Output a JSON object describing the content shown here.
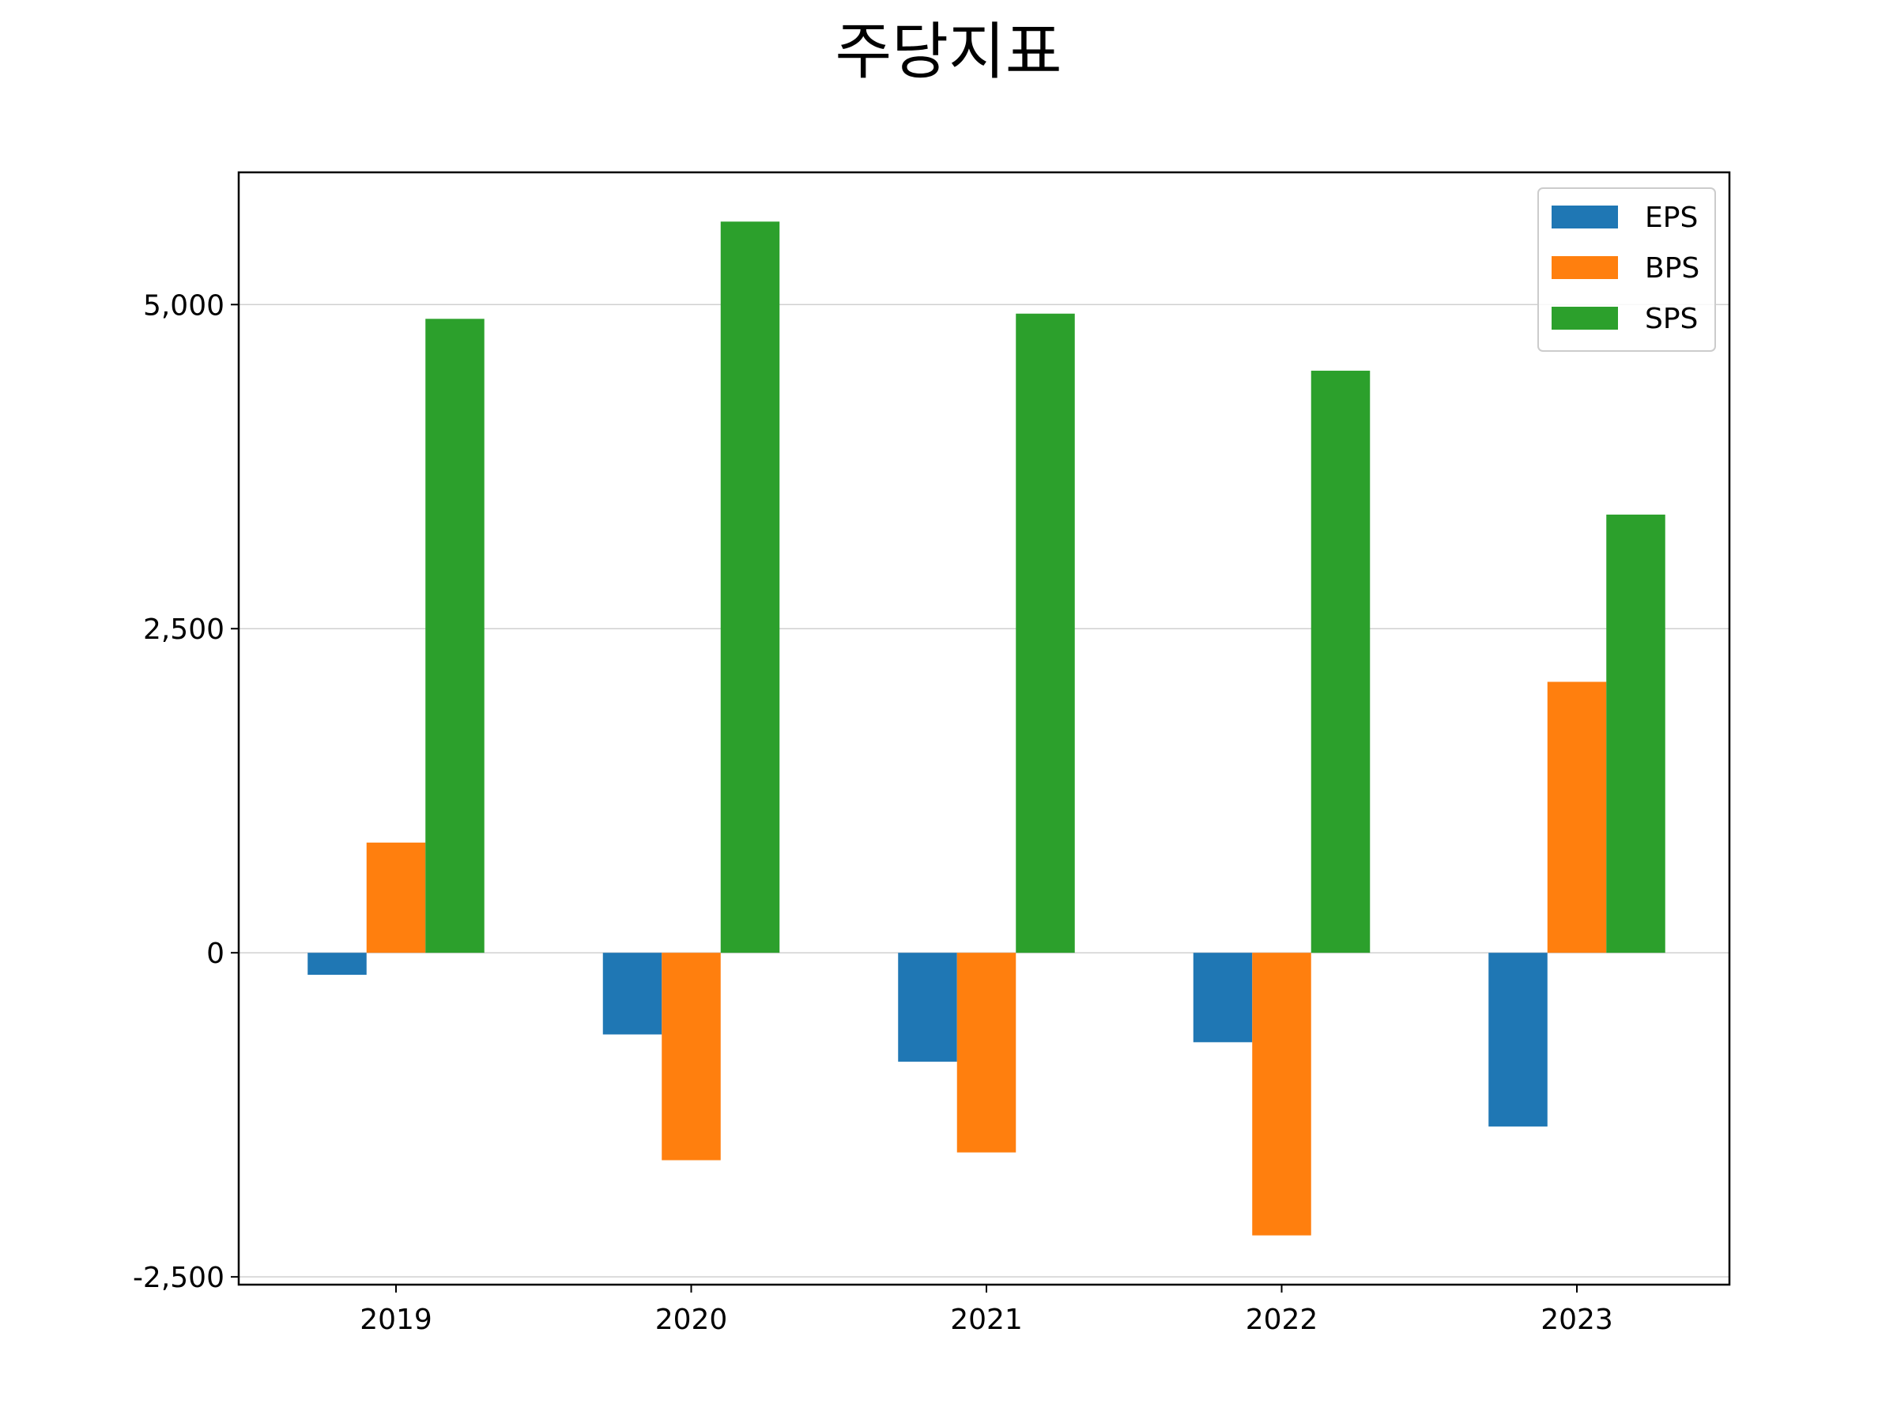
{
  "chart_data": {
    "type": "bar",
    "title": "주당지표",
    "xlabel": "",
    "ylabel": "",
    "categories": [
      "2019",
      "2020",
      "2021",
      "2022",
      "2023"
    ],
    "series": [
      {
        "name": "EPS",
        "color": "#1f77b4",
        "values": [
          -170,
          -630,
          -840,
          -690,
          -1340
        ]
      },
      {
        "name": "BPS",
        "color": "#ff7f0e",
        "values": [
          850,
          -1600,
          -1540,
          -2180,
          2090
        ]
      },
      {
        "name": "SPS",
        "color": "#2ca02c",
        "values": [
          4890,
          5640,
          4930,
          4490,
          3380
        ]
      }
    ],
    "ylim": [
      -2560,
      6020
    ],
    "yticks": [
      {
        "value": -2500,
        "label": "-2,500"
      },
      {
        "value": 0,
        "label": "0"
      },
      {
        "value": 2500,
        "label": "2,500"
      },
      {
        "value": 5000,
        "label": "5,000"
      }
    ],
    "grid": {
      "y": true,
      "x": false
    },
    "legend_position": "top-right"
  }
}
